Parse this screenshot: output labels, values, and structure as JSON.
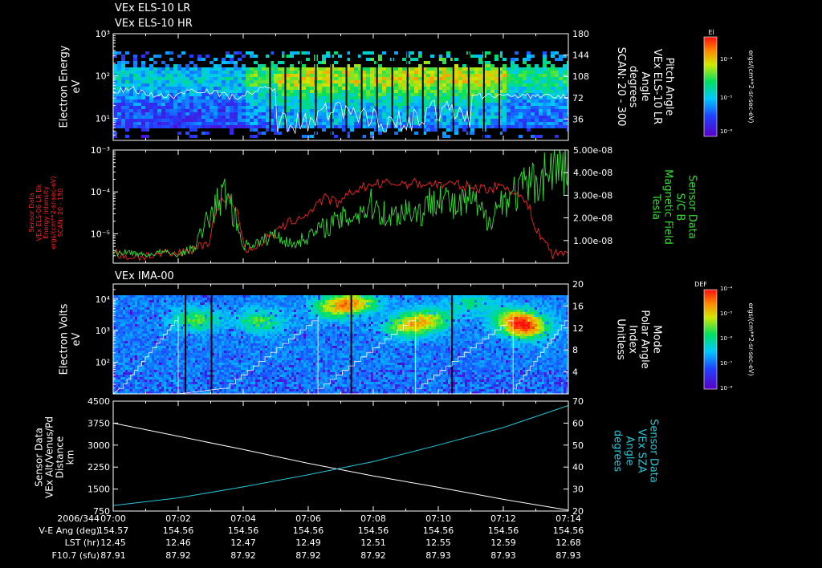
{
  "colors": {
    "background": "#000000",
    "axes": "#ffffff",
    "red_series": "#ff2020",
    "green_series": "#30e030",
    "cyan_series": "#22c8d8",
    "white_series": "#ffffff"
  },
  "header": {
    "line1": "VEx ELS-10 LR",
    "line2": "VEx ELS-10 HR"
  },
  "chart_data": [
    {
      "type": "heatmap",
      "ylabel": "Electron Energy\neV",
      "yscale": "log",
      "ylim": [
        3,
        1000
      ],
      "y_ticks": [
        {
          "v": 10,
          "label": "10¹"
        },
        {
          "v": 100,
          "label": "10²"
        },
        {
          "v": 1000,
          "label": "10³"
        }
      ],
      "right_axis": {
        "label_lines": [
          "Pitch Angle",
          "VEx ELS-10 LR",
          "Angle",
          "degrees",
          "SCAN: 20 - 300"
        ],
        "ylim": [
          0,
          180
        ],
        "ticks": [
          "36",
          "72",
          "108",
          "144",
          "180"
        ]
      },
      "colorbar": {
        "title": "El",
        "units": "ergs/(cm**2-sr-sec-eV)",
        "ticks": [
          "10⁻⁴",
          "10⁻⁵",
          "10⁻⁶"
        ]
      },
      "overlay_series": {
        "name": "",
        "color": "#ffffff"
      }
    },
    {
      "type": "line",
      "left_axis": {
        "label_lines": [
          "Sensor Data",
          "VEx ELS-06 LR Bk",
          "Energy Intensity",
          "ergs/(cm**2-sr-sec-eV)",
          "SCAN: 20 - 150"
        ],
        "yscale": "log",
        "ylim": [
          2e-06,
          0.001
        ],
        "ticks": [
          {
            "v": 0.001,
            "label": "10⁻³"
          },
          {
            "v": 0.0001,
            "label": "10⁻⁴"
          },
          {
            "v": 1e-05,
            "label": "10⁻⁵"
          }
        ]
      },
      "right_axis": {
        "label_lines": [
          "Sensor Data",
          "S/C B",
          "Magnetic Field",
          "Tesla"
        ],
        "ylim": [
          0,
          5e-08
        ],
        "ticks": [
          "1.00e-08",
          "2.00e-08",
          "3.00e-08",
          "4.00e-08",
          "5.00e-08"
        ]
      },
      "series": [
        {
          "name": "",
          "color": "#ff2020",
          "axis": "left",
          "x": [
            0,
            0.5,
            1,
            1.5,
            2,
            2.5,
            3,
            3.5,
            4,
            4.5,
            5,
            5.5,
            6,
            6.5,
            7,
            7.5,
            8,
            8.5,
            9,
            9.5,
            10,
            10.5,
            11,
            11.5,
            12,
            12.5,
            13,
            13.5,
            14
          ],
          "y": [
            3.5e-06,
            2.8e-06,
            3e-06,
            3.2e-06,
            3.3e-06,
            4.5e-06,
            7e-06,
            8e-05,
            4e-06,
            5.5e-06,
            1e-05,
            2e-05,
            3e-05,
            7e-05,
            5e-05,
            0.00012,
            0.00015,
            0.00016,
            0.00016,
            0.00016,
            0.00015,
            0.00015,
            0.00013,
            0.00012,
            0.00014,
            8e-05,
            1.2e-05,
            3e-06,
            4e-06
          ]
        },
        {
          "name": "",
          "color": "#30e030",
          "axis": "right",
          "x": [
            0,
            0.5,
            1,
            1.5,
            2,
            2.5,
            3,
            3.5,
            4,
            4.5,
            5,
            5.5,
            6,
            6.5,
            7,
            7.5,
            8,
            8.5,
            9,
            9.5,
            10,
            10.5,
            11,
            11.5,
            12,
            12.5,
            13,
            13.5,
            14
          ],
          "y": [
            4.5e-09,
            4.8e-09,
            3.5e-09,
            5e-09,
            3.5e-09,
            7e-09,
            2.2e-08,
            3.2e-08,
            8e-09,
            9e-09,
            1.3e-08,
            8e-09,
            1.2e-08,
            1.6e-08,
            1.9e-08,
            2.2e-08,
            2.6e-08,
            2e-08,
            2.4e-08,
            2.2e-08,
            3.2e-08,
            2.4e-08,
            2.8e-08,
            1.9e-08,
            2.8e-08,
            3.2e-08,
            3.6e-08,
            4.2e-08,
            4.1e-08
          ]
        }
      ]
    },
    {
      "type": "heatmap",
      "title": "VEx IMA-00",
      "ylabel": "Electron Volts\neV",
      "yscale": "log",
      "ylim": [
        10,
        30000
      ],
      "y_ticks": [
        {
          "v": 100,
          "label": "10²"
        },
        {
          "v": 1000,
          "label": "10³"
        },
        {
          "v": 10000,
          "label": "10⁴"
        }
      ],
      "right_axis": {
        "label_lines": [
          "Mode",
          "Polar Angle",
          "Index",
          "Unitless"
        ],
        "ylim": [
          0,
          20
        ],
        "ticks": [
          "4",
          "8",
          "12",
          "16",
          "20"
        ]
      },
      "colorbar": {
        "title": "DEF",
        "units": "ergs/(cm**2-sr-sec-eV)",
        "ticks": [
          "10⁻⁴",
          "10⁻⁵",
          "10⁻⁶",
          "10⁻⁷",
          "10⁻⁸"
        ]
      },
      "overlay_series": {
        "name": "",
        "color": "#ffffff"
      }
    },
    {
      "type": "line",
      "left_axis": {
        "label_lines": [
          "Sensor Data",
          "VEx Alt/Venus/Pd",
          "Distance",
          "km"
        ],
        "ylim": [
          750,
          4500
        ],
        "ticks": [
          "750",
          "1500",
          "2250",
          "3000",
          "3750",
          "4500"
        ]
      },
      "right_axis": {
        "label_lines": [
          "Sensor Data",
          "VEx SZA",
          "Angle",
          "degrees"
        ],
        "ylim": [
          20,
          70
        ],
        "ticks": [
          "20",
          "30",
          "40",
          "50",
          "60",
          "70"
        ]
      },
      "series": [
        {
          "name": "",
          "color": "#ffffff",
          "axis": "left",
          "x": [
            0,
            2,
            4,
            6,
            8,
            10,
            12,
            14
          ],
          "y": [
            3750,
            3300,
            2850,
            2380,
            1950,
            1560,
            1150,
            780
          ]
        },
        {
          "name": "",
          "color": "#22c8d8",
          "axis": "right",
          "x": [
            0,
            2,
            4,
            6,
            8,
            10,
            12,
            14
          ],
          "y": [
            22.5,
            26,
            31,
            36.5,
            42.5,
            50,
            58,
            68
          ]
        }
      ]
    }
  ],
  "x_axis": {
    "row_labels": [
      "2006/344",
      "V-E Ang (deg)",
      "LST (hr)",
      "F10.7 (sfu)"
    ],
    "ticks": [
      {
        "m": 0,
        "time": "07:00",
        "ve": "154.57",
        "lst": "12.45",
        "f107": "87.91"
      },
      {
        "m": 2,
        "time": "07:02",
        "ve": "154.56",
        "lst": "12.46",
        "f107": "87.92"
      },
      {
        "m": 4,
        "time": "07:04",
        "ve": "154.56",
        "lst": "12.47",
        "f107": "87.92"
      },
      {
        "m": 6,
        "time": "07:06",
        "ve": "154.56",
        "lst": "12.49",
        "f107": "87.92"
      },
      {
        "m": 8,
        "time": "07:08",
        "ve": "154.56",
        "lst": "12.51",
        "f107": "87.92"
      },
      {
        "m": 10,
        "time": "07:10",
        "ve": "154.56",
        "lst": "12.55",
        "f107": "87.93"
      },
      {
        "m": 12,
        "time": "07:12",
        "ve": "154.56",
        "lst": "12.59",
        "f107": "87.93"
      },
      {
        "m": 14,
        "time": "07:14",
        "ve": "154.56",
        "lst": "12.68",
        "f107": "87.93"
      }
    ]
  }
}
